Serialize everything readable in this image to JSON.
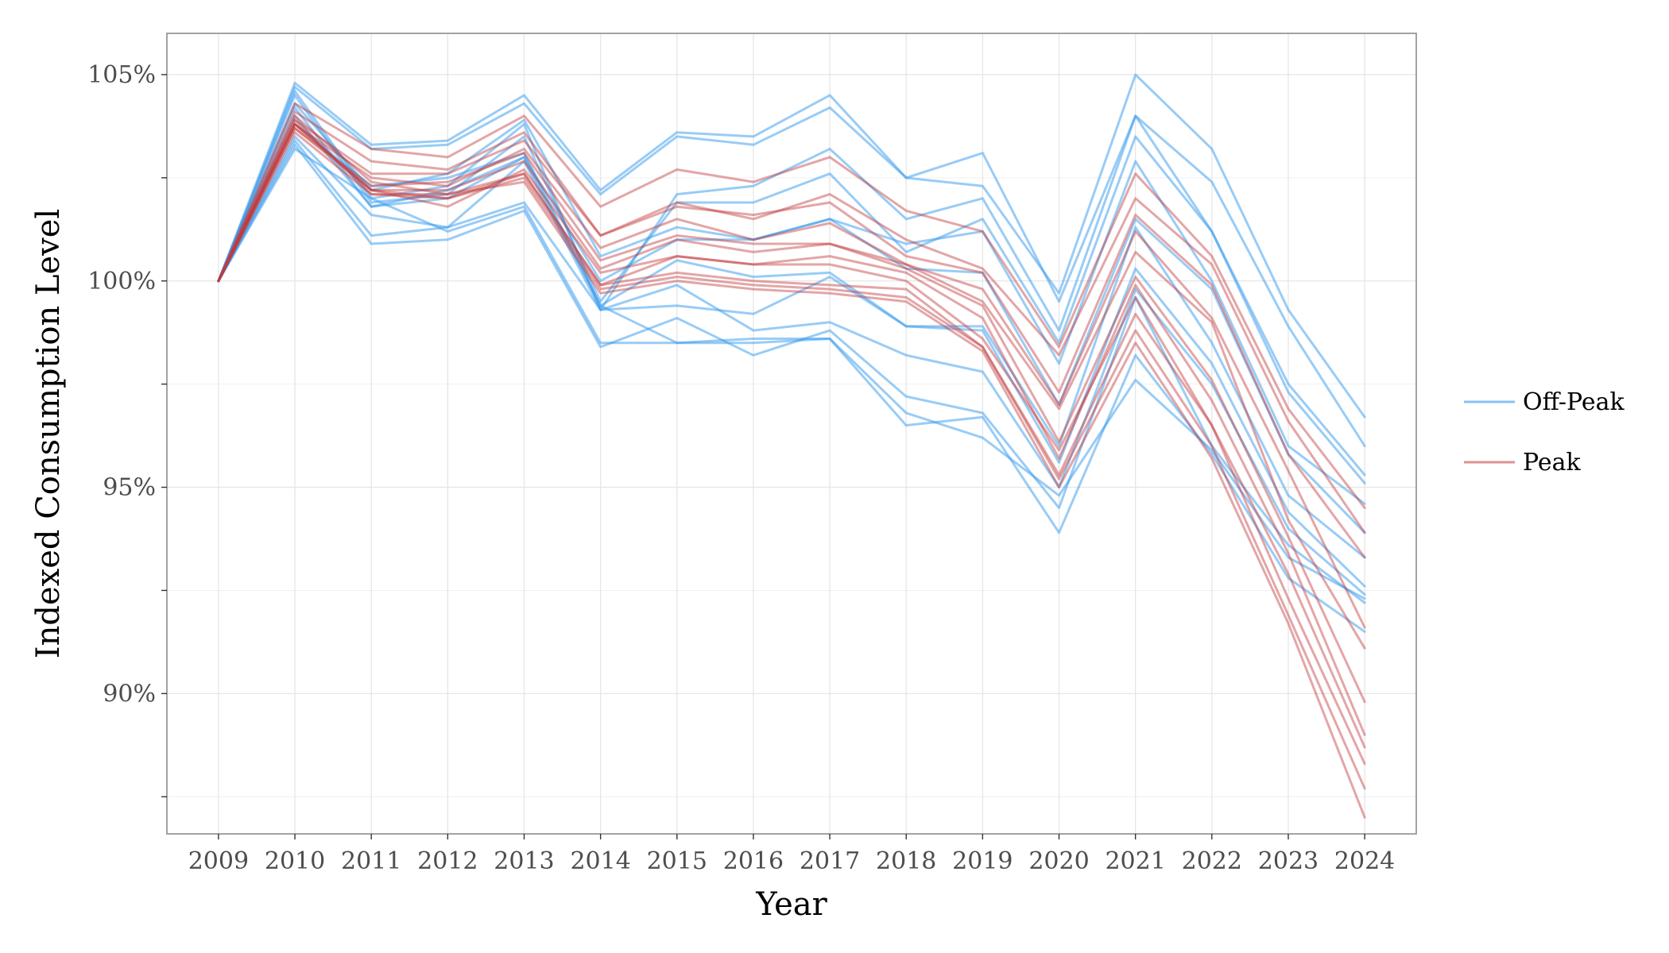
{
  "chart_data": {
    "type": "line",
    "title": "",
    "xlabel": "Year",
    "ylabel": "Indexed Consumption Level",
    "x": [
      2009,
      2010,
      2011,
      2012,
      2013,
      2014,
      2015,
      2016,
      2017,
      2018,
      2019,
      2020,
      2021,
      2022,
      2023,
      2024
    ],
    "xticks": [
      "2009",
      "2010",
      "2011",
      "2012",
      "2013",
      "2014",
      "2015",
      "2016",
      "2017",
      "2018",
      "2019",
      "2020",
      "2021",
      "2022",
      "2023",
      "2024"
    ],
    "ylim": [
      86.6,
      106.0
    ],
    "yticks": [
      90,
      95,
      100,
      105
    ],
    "ytick_labels": [
      "90%",
      "95%",
      "100%",
      "105%"
    ],
    "yminor": [
      87.5,
      92.5,
      97.5,
      102.5
    ],
    "grid": true,
    "legend_position": "right",
    "legend": [
      {
        "label": "Off-Peak",
        "group": "Off-Peak"
      },
      {
        "label": "Peak",
        "group": "Peak"
      }
    ],
    "colors": {
      "Off-Peak": "#3399ee",
      "Peak": "#c0393b"
    },
    "series": [
      {
        "group": "Off-Peak",
        "values": [
          100,
          104.8,
          103.3,
          103.4,
          104.5,
          102.2,
          103.6,
          103.5,
          104.5,
          102.5,
          102.3,
          99.7,
          105.0,
          103.2,
          99.3,
          96.7
        ]
      },
      {
        "group": "Off-Peak",
        "values": [
          100,
          104.7,
          103.2,
          103.3,
          104.3,
          102.1,
          103.5,
          103.3,
          104.2,
          102.5,
          103.1,
          99.5,
          104.0,
          102.4,
          98.9,
          96.0
        ]
      },
      {
        "group": "Off-Peak",
        "values": [
          100,
          104.6,
          102.0,
          102.3,
          103.8,
          99.3,
          102.1,
          102.3,
          103.2,
          101.5,
          102.0,
          98.8,
          104.0,
          101.2,
          97.5,
          95.3
        ]
      },
      {
        "group": "Off-Peak",
        "values": [
          100,
          104.5,
          101.9,
          102.1,
          103.5,
          99.5,
          101.9,
          101.9,
          102.6,
          100.7,
          101.5,
          98.5,
          103.5,
          101.2,
          97.3,
          95.1
        ]
      },
      {
        "group": "Off-Peak",
        "values": [
          100,
          104.3,
          102.2,
          102.6,
          103.9,
          100.6,
          101.3,
          101.0,
          101.5,
          100.9,
          101.2,
          98.0,
          102.9,
          100.0,
          96.0,
          94.6
        ]
      },
      {
        "group": "Off-Peak",
        "values": [
          100,
          104.0,
          101.8,
          102.2,
          103.0,
          100.0,
          101.0,
          101.0,
          101.5,
          100.3,
          100.2,
          97.0,
          101.5,
          99.8,
          95.8,
          93.9
        ]
      },
      {
        "group": "Off-Peak",
        "values": [
          100,
          103.8,
          102.3,
          102.5,
          103.1,
          99.4,
          100.5,
          100.1,
          100.2,
          98.9,
          98.9,
          96.0,
          101.3,
          98.5,
          94.8,
          93.3
        ]
      },
      {
        "group": "Off-Peak",
        "values": [
          100,
          103.5,
          101.6,
          101.3,
          102.9,
          99.3,
          99.4,
          99.2,
          100.1,
          98.9,
          98.8,
          95.6,
          100.3,
          98.0,
          94.4,
          92.6
        ]
      },
      {
        "group": "Off-Peak",
        "values": [
          100,
          103.4,
          101.1,
          101.3,
          101.9,
          99.3,
          99.9,
          98.8,
          99.0,
          98.2,
          97.8,
          95.0,
          99.8,
          97.5,
          94.0,
          92.4
        ]
      },
      {
        "group": "Off-Peak",
        "values": [
          100,
          103.3,
          100.9,
          101.0,
          101.7,
          98.4,
          99.1,
          98.2,
          98.8,
          97.2,
          96.8,
          94.5,
          99.6,
          96.0,
          93.6,
          92.2
        ]
      },
      {
        "group": "Off-Peak",
        "values": [
          100,
          103.2,
          102.0,
          101.2,
          101.8,
          98.5,
          98.5,
          98.6,
          98.6,
          96.5,
          96.7,
          93.9,
          98.2,
          95.8,
          92.8,
          91.5
        ]
      },
      {
        "group": "Off-Peak",
        "values": [
          100,
          104.2,
          101.8,
          102.0,
          103.0,
          99.4,
          98.5,
          98.5,
          98.6,
          96.8,
          96.2,
          94.8,
          97.6,
          95.9,
          93.3,
          92.3
        ]
      },
      {
        "group": "Peak",
        "values": [
          100,
          104.3,
          103.2,
          103.0,
          104.0,
          101.8,
          102.7,
          102.4,
          103.0,
          101.7,
          101.2,
          98.4,
          102.6,
          100.6,
          96.9,
          94.5
        ]
      },
      {
        "group": "Peak",
        "values": [
          100,
          104.1,
          102.9,
          102.7,
          103.6,
          101.1,
          101.9,
          101.5,
          102.1,
          101.0,
          100.3,
          98.2,
          102.0,
          100.4,
          96.6,
          93.9
        ]
      },
      {
        "group": "Peak",
        "values": [
          100,
          103.9,
          102.6,
          102.6,
          103.4,
          101.1,
          101.8,
          101.6,
          101.9,
          100.6,
          100.2,
          97.3,
          101.6,
          99.9,
          95.8,
          93.3
        ]
      },
      {
        "group": "Peak",
        "values": [
          100,
          103.8,
          102.5,
          102.3,
          103.2,
          100.8,
          101.5,
          101.0,
          101.4,
          100.4,
          99.8,
          97.0,
          101.2,
          99.1,
          95.4,
          91.6
        ]
      },
      {
        "group": "Peak",
        "values": [
          100,
          103.7,
          102.3,
          102.4,
          103.1,
          100.5,
          101.1,
          100.9,
          100.9,
          100.4,
          99.5,
          96.9,
          100.7,
          99.0,
          94.2,
          91.1
        ]
      },
      {
        "group": "Peak",
        "values": [
          100,
          103.7,
          102.2,
          102.2,
          102.9,
          100.3,
          101.0,
          100.7,
          100.9,
          100.3,
          99.4,
          96.1,
          100.1,
          97.6,
          93.8,
          89.8
        ]
      },
      {
        "group": "Peak",
        "values": [
          100,
          103.8,
          102.2,
          101.8,
          102.7,
          100.2,
          100.6,
          100.4,
          100.6,
          100.2,
          99.1,
          95.7,
          99.9,
          97.1,
          93.4,
          89.0
        ]
      },
      {
        "group": "Peak",
        "values": [
          100,
          103.9,
          102.1,
          102.0,
          102.6,
          99.9,
          100.6,
          100.4,
          100.4,
          100.0,
          98.6,
          95.9,
          99.6,
          96.5,
          92.9,
          88.7
        ]
      },
      {
        "group": "Peak",
        "values": [
          100,
          103.6,
          102.1,
          102.1,
          102.6,
          99.9,
          100.2,
          100.0,
          99.9,
          99.8,
          98.4,
          95.3,
          99.2,
          96.5,
          92.3,
          88.3
        ]
      },
      {
        "group": "Peak",
        "values": [
          100,
          103.8,
          102.2,
          102.0,
          102.5,
          99.8,
          100.1,
          99.9,
          99.8,
          99.6,
          98.4,
          95.2,
          98.8,
          96.0,
          91.9,
          87.7
        ]
      },
      {
        "group": "Peak",
        "values": [
          100,
          104.0,
          102.4,
          102.1,
          102.4,
          99.7,
          100.0,
          99.8,
          99.7,
          99.5,
          98.3,
          95.0,
          98.5,
          95.7,
          91.7,
          87.0
        ]
      }
    ]
  }
}
